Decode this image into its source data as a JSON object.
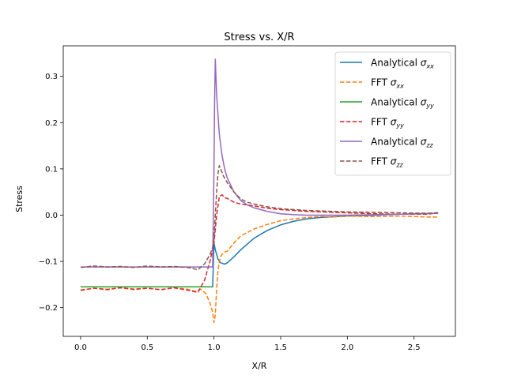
{
  "chart_data": {
    "type": "line",
    "title": "Stress vs. X/R",
    "xlabel": "X/R",
    "ylabel": "Stress",
    "xlim": [
      -0.13,
      2.81
    ],
    "ylim": [
      -0.262,
      0.366
    ],
    "xticks": [
      0.0,
      0.5,
      1.0,
      1.5,
      2.0,
      2.5
    ],
    "yticks": [
      -0.2,
      -0.1,
      0.0,
      0.1,
      0.2,
      0.3
    ],
    "xtick_labels": [
      "0.0",
      "0.5",
      "1.0",
      "1.5",
      "2.0",
      "2.5"
    ],
    "ytick_labels": [
      "−0.2",
      "−0.1",
      "0.0",
      "0.1",
      "0.2",
      "0.3"
    ],
    "grid": false,
    "legend_position": "top-right",
    "series": [
      {
        "name": "Analytical",
        "component": "xx",
        "color": "#1f77b4",
        "style": "solid",
        "x": [
          0.0,
          0.2,
          0.4,
          0.6,
          0.8,
          0.95,
          0.99,
          1.0,
          1.01,
          1.03,
          1.05,
          1.08,
          1.1,
          1.15,
          1.2,
          1.3,
          1.4,
          1.5,
          1.6,
          1.7,
          1.8,
          2.0,
          2.2,
          2.4,
          2.68
        ],
        "y": [
          -0.155,
          -0.155,
          -0.155,
          -0.155,
          -0.155,
          -0.155,
          -0.155,
          -0.06,
          -0.075,
          -0.095,
          -0.103,
          -0.106,
          -0.103,
          -0.09,
          -0.075,
          -0.05,
          -0.033,
          -0.021,
          -0.013,
          -0.008,
          -0.005,
          -0.002,
          0.0,
          0.002,
          0.004
        ]
      },
      {
        "name": "FFT",
        "component": "xx",
        "color": "#ff7f0e",
        "style": "dashed",
        "x": [
          0.0,
          0.1,
          0.2,
          0.3,
          0.4,
          0.5,
          0.6,
          0.7,
          0.8,
          0.86,
          0.9,
          0.94,
          0.97,
          0.99,
          1.0,
          1.01,
          1.02,
          1.03,
          1.04,
          1.05,
          1.06,
          1.08,
          1.1,
          1.15,
          1.2,
          1.3,
          1.4,
          1.5,
          1.6,
          1.7,
          1.8,
          1.9,
          2.0,
          2.2,
          2.4,
          2.6,
          2.68
        ],
        "y": [
          -0.163,
          -0.158,
          -0.16,
          -0.157,
          -0.161,
          -0.158,
          -0.161,
          -0.157,
          -0.16,
          -0.165,
          -0.16,
          -0.17,
          -0.19,
          -0.21,
          -0.232,
          -0.215,
          -0.16,
          -0.12,
          -0.1,
          -0.09,
          -0.085,
          -0.08,
          -0.078,
          -0.06,
          -0.045,
          -0.03,
          -0.02,
          -0.012,
          -0.008,
          -0.005,
          -0.003,
          -0.004,
          -0.002,
          -0.003,
          -0.002,
          -0.004,
          -0.004
        ]
      },
      {
        "name": "Analytical",
        "component": "yy",
        "color": "#2ca02c",
        "style": "solid",
        "x": [
          0.0,
          0.2,
          0.4,
          0.6,
          0.8,
          0.95,
          0.99
        ],
        "y": [
          -0.155,
          -0.155,
          -0.155,
          -0.155,
          -0.155,
          -0.155,
          -0.155
        ]
      },
      {
        "name": "FFT",
        "component": "yy",
        "color": "#d62728",
        "style": "dashed",
        "x": [
          0.0,
          0.1,
          0.2,
          0.3,
          0.4,
          0.5,
          0.6,
          0.7,
          0.8,
          0.88,
          0.93,
          0.97,
          1.0,
          1.02,
          1.04,
          1.06,
          1.08,
          1.1,
          1.15,
          1.2,
          1.25,
          1.3,
          1.4,
          1.5,
          1.6,
          1.7,
          1.8,
          1.9,
          2.0,
          2.1,
          2.2,
          2.4,
          2.6,
          2.68
        ],
        "y": [
          -0.162,
          -0.158,
          -0.161,
          -0.157,
          -0.16,
          -0.158,
          -0.161,
          -0.157,
          -0.162,
          -0.167,
          -0.14,
          -0.1,
          -0.06,
          0.0,
          0.04,
          0.044,
          0.038,
          0.036,
          0.028,
          0.024,
          0.022,
          0.02,
          0.015,
          0.012,
          0.01,
          0.008,
          0.007,
          0.006,
          0.005,
          0.004,
          0.003,
          0.002,
          0.002,
          0.005
        ]
      },
      {
        "name": "Analytical",
        "component": "zz",
        "color": "#9467bd",
        "style": "solid",
        "x": [
          0.0,
          0.2,
          0.4,
          0.6,
          0.8,
          0.95,
          0.99,
          1.0,
          1.005,
          1.01,
          1.02,
          1.04,
          1.06,
          1.08,
          1.1,
          1.15,
          1.2,
          1.25,
          1.3,
          1.4,
          1.5,
          1.6,
          1.7,
          1.8,
          2.0,
          2.2,
          2.4,
          2.68
        ],
        "y": [
          -0.112,
          -0.112,
          -0.112,
          -0.112,
          -0.112,
          -0.112,
          -0.112,
          0.1,
          0.25,
          0.337,
          0.26,
          0.175,
          0.13,
          0.1,
          0.08,
          0.05,
          0.032,
          0.022,
          0.016,
          0.008,
          0.003,
          0.001,
          0.0,
          0.0,
          0.0,
          0.001,
          0.002,
          0.004
        ]
      },
      {
        "name": "FFT",
        "component": "zz",
        "color": "#8c564b",
        "style": "dashed",
        "x": [
          0.0,
          0.1,
          0.2,
          0.3,
          0.4,
          0.5,
          0.6,
          0.7,
          0.8,
          0.88,
          0.93,
          0.97,
          0.99,
          1.0,
          1.01,
          1.02,
          1.03,
          1.04,
          1.05,
          1.07,
          1.1,
          1.15,
          1.2,
          1.25,
          1.3,
          1.4,
          1.5,
          1.6,
          1.7,
          1.8,
          1.9,
          2.0,
          2.2,
          2.4,
          2.6,
          2.68
        ],
        "y": [
          -0.113,
          -0.11,
          -0.112,
          -0.111,
          -0.113,
          -0.11,
          -0.112,
          -0.111,
          -0.113,
          -0.118,
          -0.105,
          -0.085,
          -0.07,
          -0.05,
          0.0,
          0.05,
          0.09,
          0.107,
          0.1,
          0.085,
          0.07,
          0.05,
          0.035,
          0.028,
          0.024,
          0.018,
          0.014,
          0.012,
          0.01,
          0.009,
          0.008,
          0.007,
          0.006,
          0.005,
          0.004,
          0.005
        ]
      }
    ]
  }
}
